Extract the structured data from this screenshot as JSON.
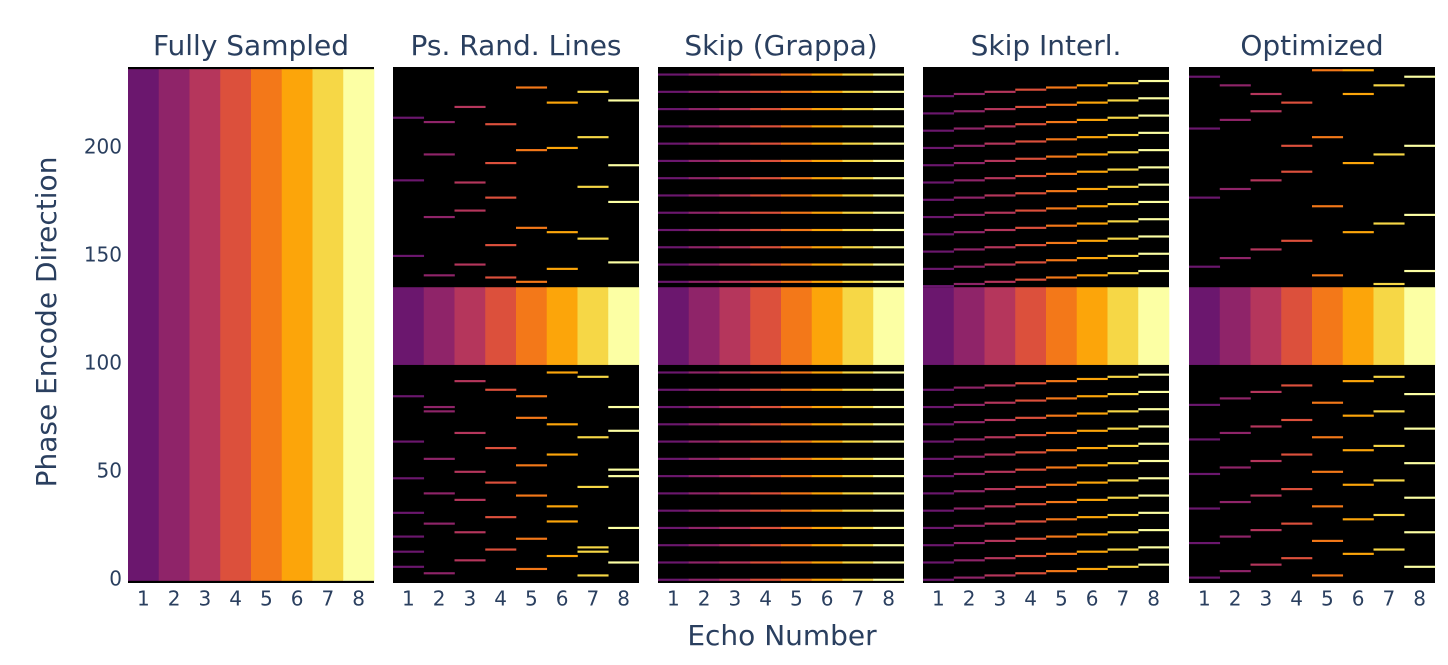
{
  "chart_data": {
    "type": "heatmap",
    "x_label": "Echo Number",
    "y_label": "Phase Encode Direction",
    "categories": [
      1,
      2,
      3,
      4,
      5,
      6,
      7,
      8
    ],
    "colors": [
      "#6b176e",
      "#8f2469",
      "#b5365c",
      "#dc503c",
      "#f37819",
      "#fca50a",
      "#f6d746",
      "#fcffa4"
    ],
    "background": "#000000",
    "ylim": [
      -1.5,
      237.5
    ],
    "yticks": [
      0,
      50,
      100,
      150,
      200
    ],
    "panels": [
      {
        "title": "Fully Sampled",
        "center": [
          0,
          236
        ],
        "lines": [
          [],
          [],
          [],
          [],
          [],
          [],
          [],
          []
        ]
      },
      {
        "title": "Ps. Rand. Lines",
        "center": [
          100,
          135
        ],
        "lines": [
          [
            6,
            13,
            20,
            31,
            47,
            64,
            85,
            150,
            185,
            214
          ],
          [
            3,
            26,
            40,
            56,
            78,
            80,
            141,
            168,
            197,
            212
          ],
          [
            9,
            22,
            37,
            50,
            68,
            92,
            146,
            171,
            184,
            219
          ],
          [
            14,
            29,
            45,
            61,
            88,
            140,
            155,
            177,
            193,
            211
          ],
          [
            5,
            19,
            39,
            53,
            75,
            85,
            138,
            163,
            199,
            228
          ],
          [
            11,
            27,
            34,
            58,
            72,
            96,
            144,
            161,
            200,
            221
          ],
          [
            2,
            13,
            15,
            43,
            66,
            94,
            158,
            182,
            205,
            226
          ],
          [
            8,
            24,
            48,
            51,
            69,
            80,
            147,
            175,
            192,
            222
          ]
        ]
      },
      {
        "title": "Skip (Grappa)",
        "center": [
          100,
          135
        ],
        "lines": [
          [
            0,
            8,
            16,
            24,
            32,
            40,
            48,
            56,
            64,
            72,
            80,
            88,
            96,
            138,
            146,
            154,
            162,
            170,
            178,
            186,
            194,
            202,
            210,
            218,
            226,
            234
          ],
          [
            0,
            8,
            16,
            24,
            32,
            40,
            48,
            56,
            64,
            72,
            80,
            88,
            96,
            138,
            146,
            154,
            162,
            170,
            178,
            186,
            194,
            202,
            210,
            218,
            226,
            234
          ],
          [
            0,
            8,
            16,
            24,
            32,
            40,
            48,
            56,
            64,
            72,
            80,
            88,
            96,
            138,
            146,
            154,
            162,
            170,
            178,
            186,
            194,
            202,
            210,
            218,
            226,
            234
          ],
          [
            0,
            8,
            16,
            24,
            32,
            40,
            48,
            56,
            64,
            72,
            80,
            88,
            96,
            138,
            146,
            154,
            162,
            170,
            178,
            186,
            194,
            202,
            210,
            218,
            226,
            234
          ],
          [
            0,
            8,
            16,
            24,
            32,
            40,
            48,
            56,
            64,
            72,
            80,
            88,
            96,
            138,
            146,
            154,
            162,
            170,
            178,
            186,
            194,
            202,
            210,
            218,
            226,
            234
          ],
          [
            0,
            8,
            16,
            24,
            32,
            40,
            48,
            56,
            64,
            72,
            80,
            88,
            96,
            138,
            146,
            154,
            162,
            170,
            178,
            186,
            194,
            202,
            210,
            218,
            226,
            234
          ],
          [
            0,
            8,
            16,
            24,
            32,
            40,
            48,
            56,
            64,
            72,
            80,
            88,
            96,
            138,
            146,
            154,
            162,
            170,
            178,
            186,
            194,
            202,
            210,
            218,
            226,
            234
          ],
          [
            0,
            8,
            16,
            24,
            32,
            40,
            48,
            56,
            64,
            72,
            80,
            88,
            96,
            138,
            146,
            154,
            162,
            170,
            178,
            186,
            194,
            202,
            210,
            218,
            226,
            234
          ]
        ]
      },
      {
        "title": "Skip Interl.",
        "center": [
          100,
          135
        ],
        "lines": [
          [
            0,
            8,
            16,
            24,
            32,
            40,
            48,
            56,
            64,
            72,
            80,
            88,
            136,
            144,
            152,
            160,
            168,
            176,
            184,
            192,
            200,
            208,
            216,
            224
          ],
          [
            1,
            9,
            17,
            25,
            33,
            41,
            49,
            57,
            65,
            73,
            81,
            89,
            137,
            145,
            153,
            161,
            169,
            177,
            185,
            193,
            201,
            209,
            217,
            225
          ],
          [
            2,
            10,
            18,
            26,
            34,
            42,
            50,
            58,
            66,
            74,
            82,
            90,
            138,
            146,
            154,
            162,
            170,
            178,
            186,
            194,
            202,
            210,
            218,
            226
          ],
          [
            3,
            11,
            19,
            27,
            35,
            43,
            51,
            59,
            67,
            75,
            83,
            91,
            139,
            147,
            155,
            163,
            171,
            179,
            187,
            195,
            203,
            211,
            219,
            227
          ],
          [
            4,
            12,
            20,
            28,
            36,
            44,
            52,
            60,
            68,
            76,
            84,
            92,
            140,
            148,
            156,
            164,
            172,
            180,
            188,
            196,
            204,
            212,
            220,
            228
          ],
          [
            5,
            13,
            21,
            29,
            37,
            45,
            53,
            61,
            69,
            77,
            85,
            93,
            141,
            149,
            157,
            165,
            173,
            181,
            189,
            197,
            205,
            213,
            221,
            229
          ],
          [
            6,
            14,
            22,
            30,
            38,
            46,
            54,
            62,
            70,
            78,
            86,
            94,
            142,
            150,
            158,
            166,
            174,
            182,
            190,
            198,
            206,
            214,
            222,
            230
          ],
          [
            7,
            15,
            23,
            31,
            39,
            47,
            55,
            63,
            71,
            79,
            87,
            95,
            143,
            151,
            159,
            167,
            175,
            183,
            191,
            199,
            207,
            215,
            223,
            231
          ]
        ]
      },
      {
        "title": "Optimized",
        "center": [
          100,
          135
        ],
        "lines": [
          [
            1,
            17,
            33,
            49,
            65,
            81,
            145,
            177,
            209,
            233
          ],
          [
            4,
            20,
            36,
            52,
            68,
            84,
            149,
            181,
            213,
            229
          ],
          [
            7,
            23,
            39,
            55,
            71,
            87,
            153,
            185,
            217,
            225
          ],
          [
            10,
            26,
            42,
            58,
            74,
            90,
            157,
            189,
            201,
            221
          ],
          [
            2,
            18,
            34,
            50,
            66,
            82,
            141,
            173,
            205,
            236
          ],
          [
            12,
            28,
            44,
            60,
            76,
            92,
            161,
            193,
            225,
            236
          ],
          [
            14,
            30,
            46,
            62,
            78,
            94,
            137,
            165,
            197,
            229
          ],
          [
            6,
            22,
            38,
            54,
            70,
            86,
            143,
            169,
            201,
            233
          ]
        ]
      }
    ]
  }
}
